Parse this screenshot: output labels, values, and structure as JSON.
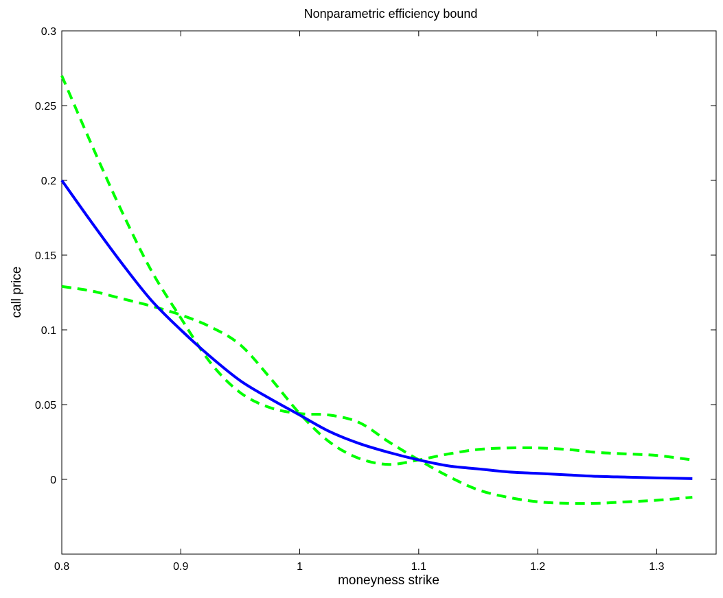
{
  "chart_data": {
    "type": "line",
    "title": "Nonparametric efficiency bound",
    "xlabel": "moneyness strike",
    "ylabel": "call price",
    "xlim": [
      0.8,
      1.35
    ],
    "ylim": [
      -0.05,
      0.3
    ],
    "xticks": [
      "0.8",
      "0.9",
      "1",
      "1.1",
      "1.2",
      "1.3"
    ],
    "yticks": [
      "0",
      "0.05",
      "0.1",
      "0.15",
      "0.2",
      "0.25",
      "0.3"
    ],
    "grid": false,
    "legend": "none",
    "series": [
      {
        "color": "#0000ff",
        "style": "solid",
        "x": [
          0.8,
          0.825,
          0.85,
          0.875,
          0.9,
          0.925,
          0.95,
          0.975,
          1.0,
          1.025,
          1.05,
          1.075,
          1.1,
          1.125,
          1.15,
          1.175,
          1.2,
          1.225,
          1.25,
          1.275,
          1.3,
          1.33
        ],
        "values": [
          0.2,
          0.172,
          0.145,
          0.12,
          0.1,
          0.082,
          0.066,
          0.054,
          0.043,
          0.032,
          0.024,
          0.018,
          0.013,
          0.009,
          0.007,
          0.005,
          0.004,
          0.003,
          0.002,
          0.0015,
          0.001,
          0.0005
        ]
      },
      {
        "color": "#00ff00",
        "style": "dashed",
        "x": [
          0.8,
          0.825,
          0.85,
          0.875,
          0.9,
          0.925,
          0.95,
          0.975,
          1.0,
          1.025,
          1.05,
          1.075,
          1.1,
          1.125,
          1.15,
          1.175,
          1.2,
          1.225,
          1.25,
          1.275,
          1.3,
          1.33
        ],
        "values": [
          0.27,
          0.224,
          0.18,
          0.14,
          0.108,
          0.078,
          0.058,
          0.048,
          0.044,
          0.043,
          0.038,
          0.025,
          0.013,
          0.002,
          -0.007,
          -0.012,
          -0.015,
          -0.016,
          -0.016,
          -0.015,
          -0.014,
          -0.012
        ]
      },
      {
        "color": "#00ff00",
        "style": "dashed",
        "x": [
          0.8,
          0.825,
          0.85,
          0.875,
          0.9,
          0.925,
          0.95,
          0.975,
          1.0,
          1.025,
          1.05,
          1.075,
          1.1,
          1.125,
          1.15,
          1.175,
          1.2,
          1.225,
          1.25,
          1.275,
          1.3,
          1.33
        ],
        "values": [
          0.129,
          0.126,
          0.121,
          0.116,
          0.11,
          0.102,
          0.09,
          0.068,
          0.044,
          0.025,
          0.014,
          0.01,
          0.013,
          0.017,
          0.02,
          0.021,
          0.021,
          0.02,
          0.018,
          0.017,
          0.016,
          0.013
        ]
      }
    ]
  }
}
